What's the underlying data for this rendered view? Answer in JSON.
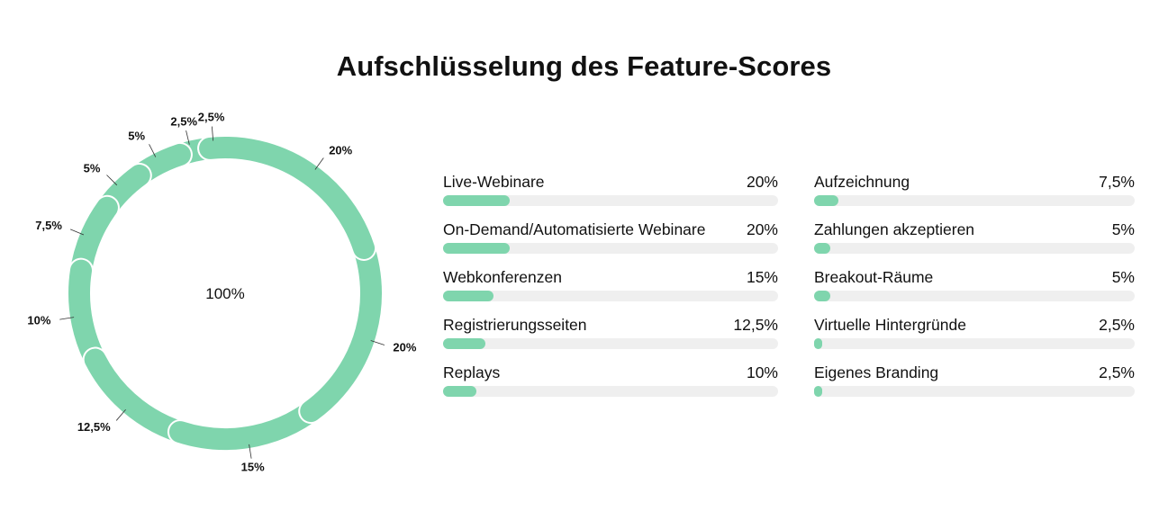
{
  "chart_data": [
    {
      "type": "pie",
      "title": "Aufschlüsselung des Feature-Scores",
      "center_label": "100%",
      "values": [
        20,
        20,
        15,
        12.5,
        10,
        7.5,
        5,
        5,
        2.5,
        2.5
      ],
      "value_labels": [
        "20%",
        "20%",
        "15%",
        "12,5%",
        "10%",
        "7,5%",
        "5%",
        "5%",
        "2,5%",
        "2,5%"
      ],
      "color": "#7fd5ad"
    },
    {
      "type": "bar",
      "orientation": "horizontal",
      "xlim": [
        0,
        100
      ],
      "color": "#7fd5ad",
      "track_color": "#efefef",
      "categories": [
        "Live-Webinare",
        "On-Demand/Automatisierte Webinare",
        "Webkonferenzen",
        "Registrierungsseiten",
        "Replays",
        "Aufzeichnung",
        "Zahlungen akzeptieren",
        "Breakout-Räume",
        "Virtuelle Hintergründe",
        "Eigenes Branding"
      ],
      "values": [
        20,
        20,
        15,
        12.5,
        10,
        7.5,
        5,
        5,
        2.5,
        2.5
      ],
      "value_labels": [
        "20%",
        "20%",
        "15%",
        "12,5%",
        "10%",
        "7,5%",
        "5%",
        "5%",
        "2,5%",
        "2,5%"
      ]
    }
  ]
}
